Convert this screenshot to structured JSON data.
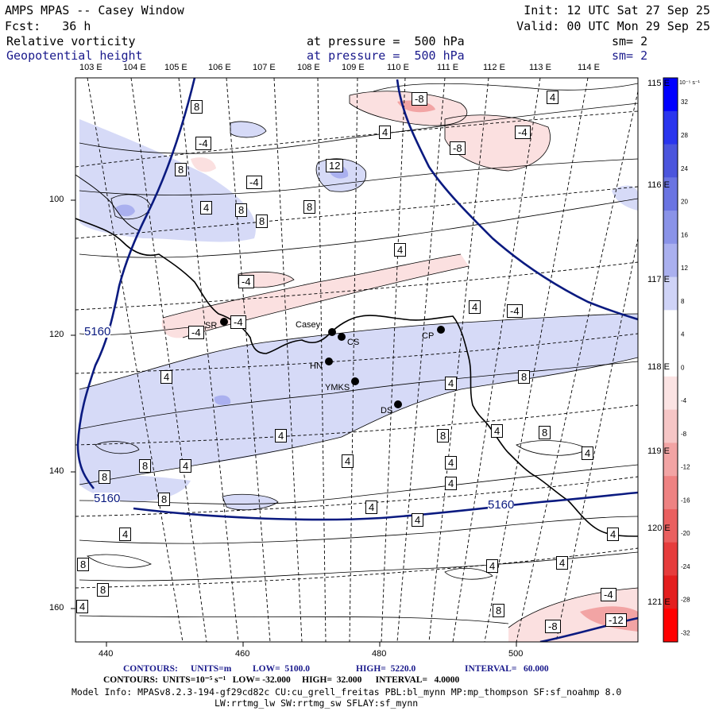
{
  "header": {
    "title": "AMPS MPAS -- Casey Window",
    "forecast": "Fcst:   36 h",
    "init": "Init: 12 UTC Sat 27 Sep 25",
    "valid": "Valid: 00 UTC Mon 29 Sep 25",
    "field1_name": "Relative vorticity",
    "field1_level": "at pressure =  500 hPa",
    "field1_sm": "sm= 2",
    "field2_name": "Geopotential height",
    "field2_level": "at pressure =  500 hPa",
    "field2_sm": "sm= 2"
  },
  "axes": {
    "top_lon_labels": [
      "103 E",
      "104 E",
      "105 E",
      "106 E",
      "107 E",
      "108 E",
      "109 E",
      "110 E",
      "111 E",
      "112 E",
      "113 E",
      "114 E"
    ],
    "right_lon_labels": [
      "115 E",
      "116 E",
      "117 E",
      "118 E",
      "119 E",
      "120 E",
      "121 E"
    ],
    "left_ticks": [
      "100",
      "120",
      "140",
      "160"
    ],
    "bottom_ticks": [
      "440",
      "460",
      "480",
      "500"
    ]
  },
  "colorbar": {
    "unit_label": "10⁻⁵ s⁻¹",
    "levels": [
      "32",
      "28",
      "24",
      "20",
      "16",
      "12",
      "8",
      "4",
      "0",
      "-4",
      "-8",
      "-12",
      "-16",
      "-20",
      "-24",
      "-28",
      "-32"
    ],
    "colors": [
      "#0000ff",
      "#2a35ee",
      "#4b55dd",
      "#6a74e2",
      "#8a93e8",
      "#aab0ef",
      "#cfd3f7",
      "#ffffff",
      "#ffffff",
      "#fbe3e3",
      "#f6c6c6",
      "#f2a4a4",
      "#ee8282",
      "#ea6060",
      "#e63c3c",
      "#e41e1e",
      "#ff0000"
    ]
  },
  "stations": [
    {
      "code": "SR"
    },
    {
      "code": "Casey"
    },
    {
      "code": "CS"
    },
    {
      "code": "HN"
    },
    {
      "code": "YMKS"
    },
    {
      "code": "CP"
    },
    {
      "code": "DS"
    }
  ],
  "contour_labels": {
    "height": [
      "5160",
      "5160",
      "5160"
    ],
    "vorticity": [
      "8",
      "-8",
      "4",
      "4",
      "-4",
      "-8",
      "-4",
      "8",
      "4",
      "8",
      "12",
      "8",
      "-4",
      "8",
      "4",
      "4",
      "-4",
      "-4",
      "-4",
      "-4",
      "4",
      "8",
      "8",
      "8",
      "4",
      "4",
      "8",
      "4",
      "8",
      "4",
      "4",
      "8",
      "4",
      "8",
      "4",
      "4",
      "4",
      "4",
      "4",
      "4",
      "8",
      "4",
      "4",
      "4",
      "8",
      "-4",
      "-12",
      "-8"
    ]
  },
  "footer": {
    "line1_contours": "CONTOURS:",
    "line1_units": "UNITS=m",
    "line1_low": "LOW=  5100.0",
    "line1_high": "HIGH=  5220.0",
    "line1_interval": "INTERVAL=   60.000",
    "line2": "CONTOURS:  UNITS=10⁻⁵ s⁻¹   LOW= -32.000     HIGH=  32.000      INTERVAL=   4.0000",
    "line3": "Model Info: MPASv8.2.3-194-gf29cd82c CU:cu_grell_freitas PBL:bl_mynn MP:mp_thompson SF:sf_noahmp 8.0",
    "line4": "LW:rrtmg_lw SW:rrtmg_sw SFLAY:sf_mynn"
  }
}
